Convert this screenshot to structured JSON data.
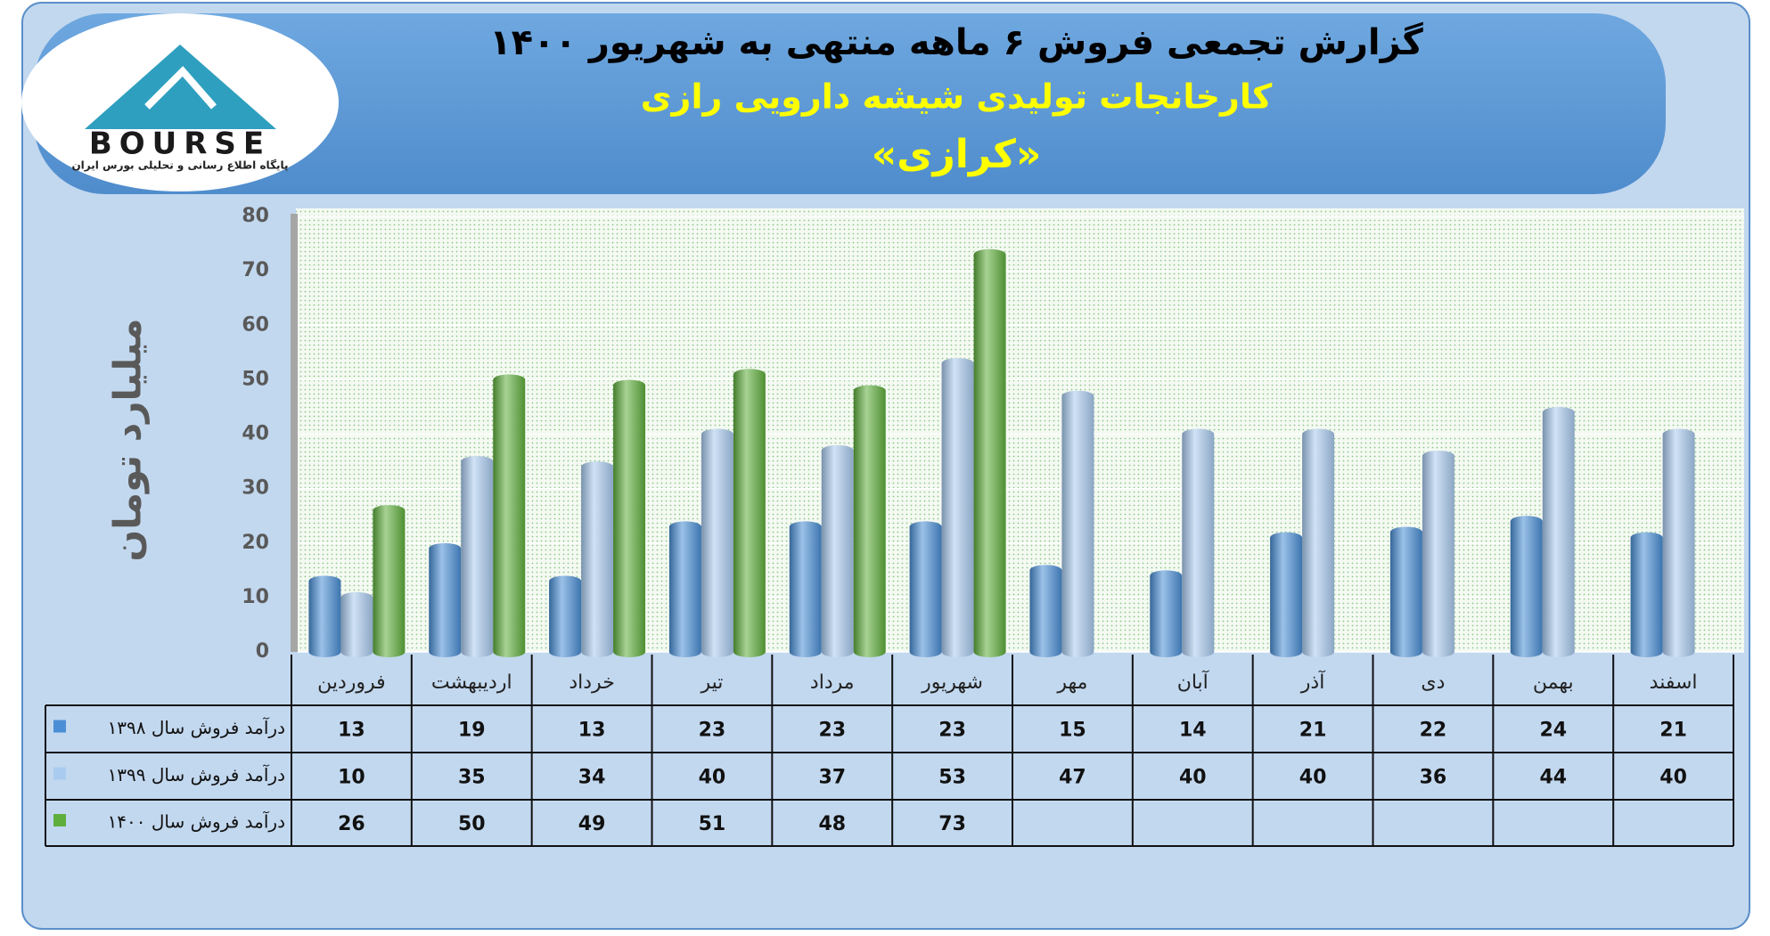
{
  "logo": {
    "name": "BOURSE",
    "tagline": "پایگاه اطلاع رسانی و تحلیلی بورس ایران"
  },
  "chart_data": {
    "type": "bar",
    "title": "گزارش تجمعی فروش ۶ ماهه منتهی به شهریور ۱۴۰۰",
    "subtitle": "کارخانجات تولیدی شیشه دارویی رازی",
    "symbol": "«کرازی»",
    "y_label": "میلیارد تومان",
    "categories": [
      "فروردین",
      "اردیبهشت",
      "خرداد",
      "تیر",
      "مرداد",
      "شهریور",
      "مهر",
      "آبان",
      "آذر",
      "دی",
      "بهمن",
      "اسفند"
    ],
    "series": [
      {
        "name": "درآمد فروش سال ۱۳۹۸",
        "color": "#4a8fd6",
        "values": [
          13,
          19,
          13,
          23,
          23,
          23,
          15,
          14,
          21,
          22,
          24,
          21
        ]
      },
      {
        "name": "درآمد فروش سال ۱۳۹۹",
        "color": "#a9cbef",
        "values": [
          10,
          35,
          34,
          40,
          37,
          53,
          47,
          40,
          40,
          36,
          44,
          40
        ]
      },
      {
        "name": "درآمد فروش سال ۱۴۰۰",
        "color": "#5fae3c",
        "values": [
          26,
          50,
          49,
          51,
          48,
          73,
          null,
          null,
          null,
          null,
          null,
          null
        ]
      }
    ],
    "ylim": [
      0,
      80
    ],
    "yticks": [
      0,
      10,
      20,
      30,
      40,
      50,
      60,
      70,
      80
    ],
    "grid": true,
    "data_table": true
  }
}
